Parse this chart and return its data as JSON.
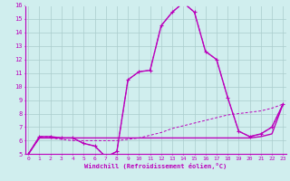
{
  "xlabel": "Windchill (Refroidissement éolien,°C)",
  "xlim": [
    0,
    23
  ],
  "ylim": [
    5,
    16
  ],
  "xticks": [
    0,
    1,
    2,
    3,
    4,
    5,
    6,
    7,
    8,
    9,
    10,
    11,
    12,
    13,
    14,
    15,
    16,
    17,
    18,
    19,
    20,
    21,
    22,
    23
  ],
  "yticks": [
    5,
    6,
    7,
    8,
    9,
    10,
    11,
    12,
    13,
    14,
    15,
    16
  ],
  "bg_color": "#d0eeee",
  "grid_color": "#aacccc",
  "line_color": "#bb00bb",
  "lines": [
    {
      "x": [
        0,
        1,
        2,
        3,
        4,
        5,
        6,
        7,
        8,
        9,
        10,
        11,
        12,
        13,
        14,
        15,
        16,
        17,
        18,
        19,
        20,
        21,
        22,
        23
      ],
      "y": [
        5.0,
        6.3,
        6.3,
        6.2,
        6.2,
        5.8,
        5.6,
        4.8,
        5.2,
        10.5,
        11.1,
        11.2,
        14.5,
        15.5,
        16.2,
        15.5,
        12.6,
        12.0,
        9.2,
        6.7,
        6.3,
        6.5,
        7.0,
        8.7
      ],
      "style": "dashed_marker"
    },
    {
      "x": [
        0,
        1,
        2,
        3,
        4,
        5,
        6,
        7,
        8,
        9,
        10,
        11,
        12,
        13,
        14,
        15,
        16,
        17,
        18,
        19,
        20,
        21,
        22,
        23
      ],
      "y": [
        5.0,
        6.3,
        6.3,
        6.2,
        6.2,
        5.8,
        5.6,
        4.8,
        5.2,
        10.5,
        11.1,
        11.2,
        14.5,
        15.5,
        16.2,
        15.5,
        12.6,
        12.0,
        9.2,
        6.7,
        6.3,
        6.5,
        7.0,
        8.7
      ],
      "style": "solid_thin"
    },
    {
      "x": [
        0,
        1,
        2,
        3,
        4,
        5,
        6,
        7,
        8,
        9,
        10,
        11,
        12,
        13,
        14,
        15,
        16,
        17,
        18,
        19,
        20,
        21,
        22,
        23
      ],
      "y": [
        5.0,
        6.2,
        6.2,
        6.1,
        6.0,
        6.0,
        6.0,
        6.0,
        6.0,
        6.1,
        6.2,
        6.4,
        6.6,
        6.9,
        7.1,
        7.3,
        7.5,
        7.7,
        7.9,
        8.0,
        8.1,
        8.2,
        8.4,
        8.7
      ],
      "style": "dashed_thin"
    },
    {
      "x": [
        0,
        1,
        2,
        3,
        4,
        5,
        6,
        7,
        8,
        9,
        10,
        11,
        12,
        13,
        14,
        15,
        16,
        17,
        18,
        19,
        20,
        21,
        22,
        23
      ],
      "y": [
        5.0,
        6.2,
        6.2,
        6.2,
        6.2,
        6.2,
        6.2,
        6.2,
        6.2,
        6.2,
        6.2,
        6.2,
        6.2,
        6.2,
        6.2,
        6.2,
        6.2,
        6.2,
        6.2,
        6.2,
        6.2,
        6.3,
        6.5,
        8.7
      ],
      "style": "solid_flat"
    }
  ]
}
